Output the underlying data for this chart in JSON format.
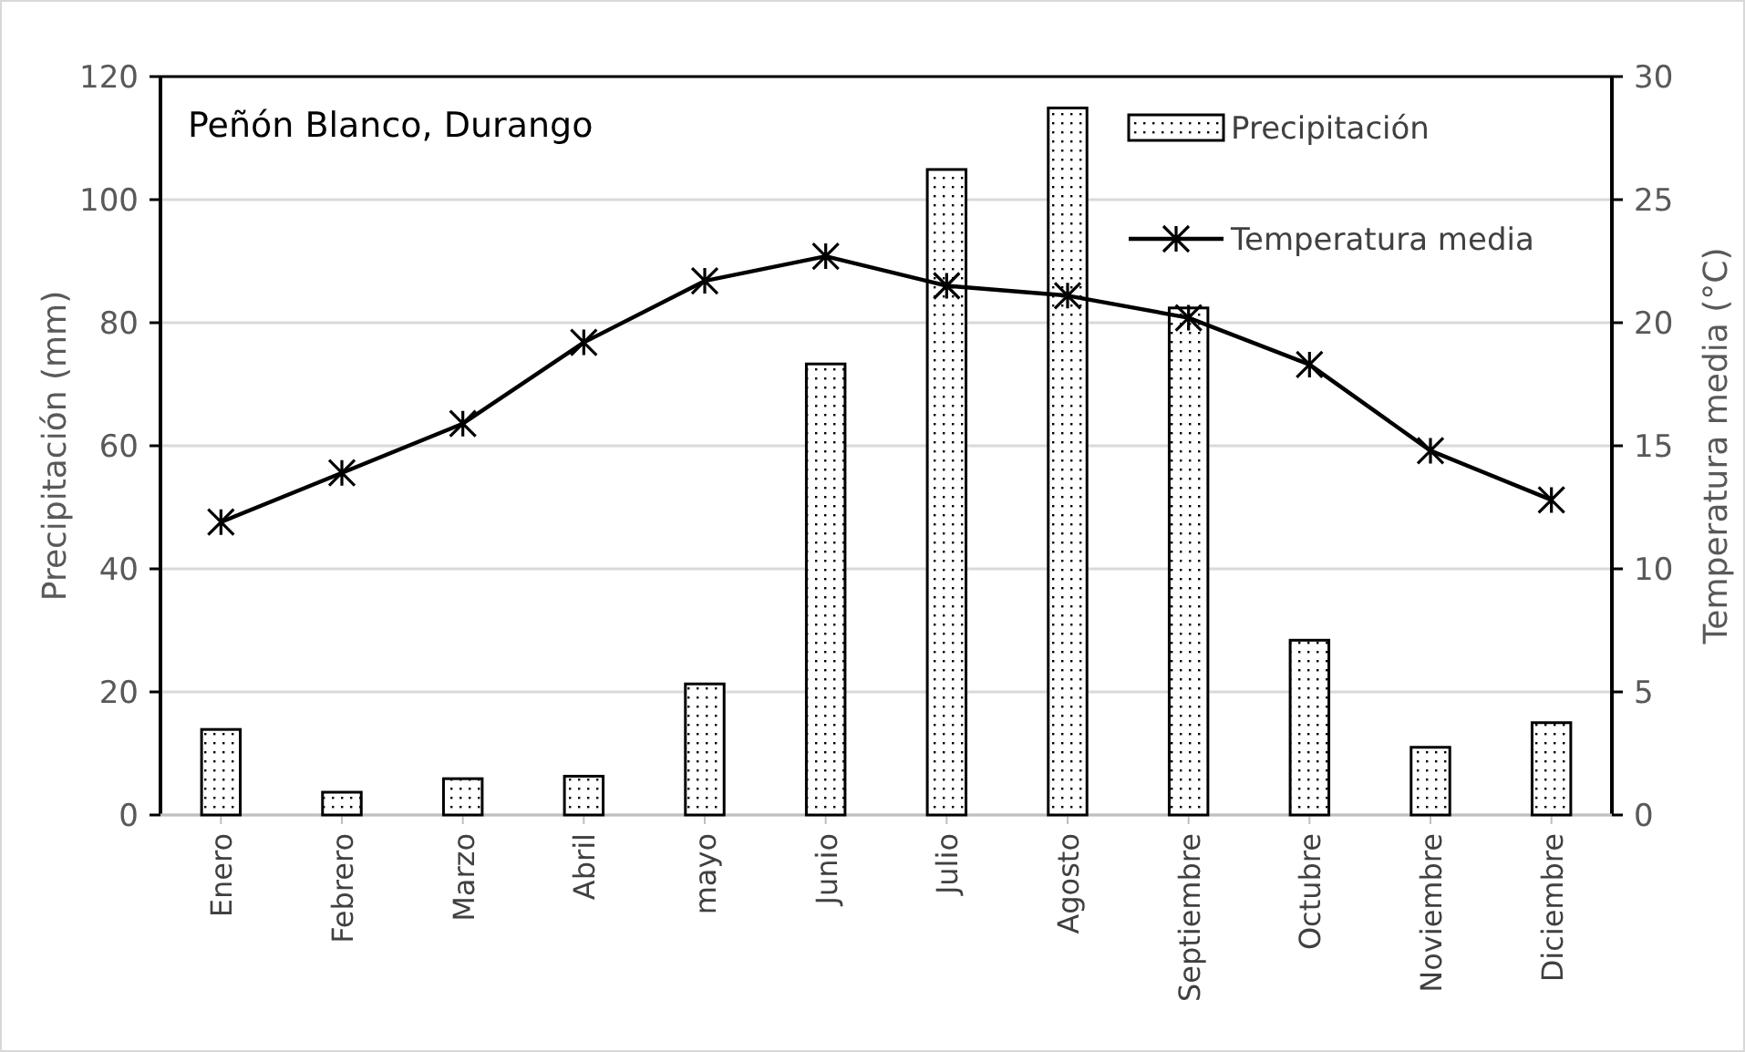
{
  "chart_data": {
    "type": "bar",
    "title": "Peñón Blanco, Durango",
    "ylabel": "Precipitación (mm)",
    "y2label": "Temperatura media (°C)",
    "categories": [
      "Enero",
      "Febrero",
      "Marzo",
      "Abril",
      "mayo",
      "Junio",
      "Julio",
      "Agosto",
      "Septiembre",
      "Octubre",
      "Noviembre",
      "Diciembre"
    ],
    "series": [
      {
        "name": "Precipitación",
        "color": "#000000",
        "values": [
          13.9,
          3.7,
          5.9,
          6.3,
          21.3,
          73.3,
          104.9,
          114.9,
          82.4,
          28.4,
          11,
          15
        ]
      },
      {
        "name": "Temperatura media",
        "type": "line",
        "axis": "y2",
        "color": "#000000",
        "marker": "cross",
        "values": [
          11.9,
          13.9,
          15.9,
          19.2,
          21.7,
          22.7,
          21.5,
          21.1,
          20.2,
          18.3,
          14.8,
          12.8
        ]
      }
    ],
    "ylim": [
      0,
      120
    ],
    "yticks": [
      0,
      20,
      40,
      60,
      80,
      100,
      120
    ],
    "y2lim": [
      0,
      30
    ],
    "y2ticks": [
      0,
      5,
      10,
      15,
      20,
      25,
      30
    ],
    "grid": "y",
    "legend": "top right"
  }
}
